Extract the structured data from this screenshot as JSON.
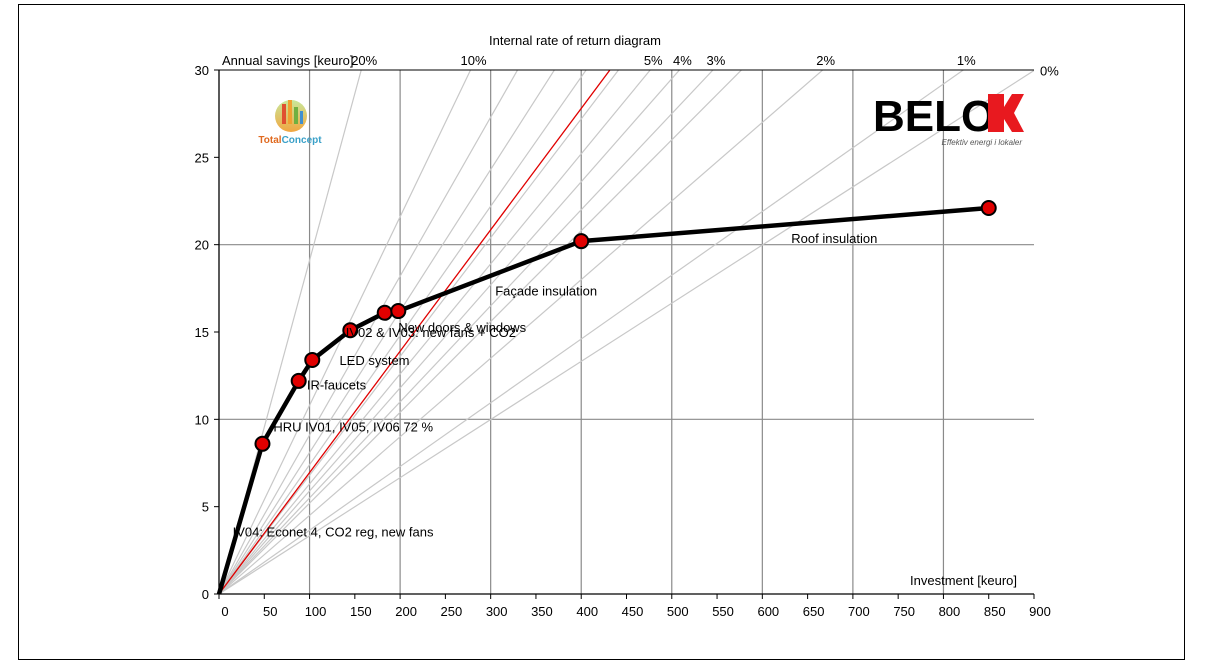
{
  "chart_data": {
    "type": "line",
    "title": "Internal rate of return diagram",
    "xlabel": "Investment [keuro]",
    "ylabel": "Annual savings [keuro]",
    "xlim": [
      0,
      900
    ],
    "ylim": [
      0,
      30
    ],
    "x_ticks": [
      "0",
      "50",
      "100",
      "150",
      "200",
      "250",
      "300",
      "350",
      "400",
      "450",
      "500",
      "550",
      "600",
      "650",
      "700",
      "750",
      "800",
      "850",
      "900"
    ],
    "y_ticks": [
      "0",
      "5",
      "10",
      "15",
      "20",
      "25",
      "30"
    ],
    "grid": true,
    "series": [
      {
        "x": [
          0,
          48,
          88,
          103,
          145,
          183,
          198,
          400,
          850
        ],
        "y": [
          0,
          8.6,
          12.2,
          13.4,
          15.1,
          16.1,
          16.2,
          20.2,
          22.1
        ],
        "color": "#000000",
        "marker_color": "#e00000"
      }
    ],
    "point_labels": [
      {
        "text": "IV04: Econet 4, CO2 reg, new fans",
        "x": 15,
        "y": 3.3
      },
      {
        "text": "HRU IV01, IV05, IV06 72 %",
        "x": 60,
        "y": 9.3
      },
      {
        "text": "IR-faucets",
        "x": 97,
        "y": 11.7
      },
      {
        "text": "LED system",
        "x": 133,
        "y": 13.1
      },
      {
        "text": "IV02 & IV03: new fans + CO2",
        "x": 140,
        "y": 14.7
      },
      {
        "text": "New doors & windows",
        "x": 198,
        "y": 15.0
      },
      {
        "text": "Façade insulation",
        "x": 305,
        "y": 17.1
      },
      {
        "text": "Roof insulation",
        "x": 632,
        "y": 20.1
      }
    ],
    "irr_lines": [
      {
        "label": "20%",
        "slope": 0.191
      },
      {
        "label": "10%",
        "slope": 0.108
      },
      {
        "label": "",
        "slope": 0.091
      },
      {
        "label": "",
        "slope": 0.081
      },
      {
        "label": "",
        "slope": 0.074
      },
      {
        "label": "",
        "slope": 0.068
      },
      {
        "label": "5%",
        "slope": 0.063
      },
      {
        "label": "4%",
        "slope": 0.059
      },
      {
        "label": "3%",
        "slope": 0.055
      },
      {
        "label": "",
        "slope": 0.052
      },
      {
        "label": "2%",
        "slope": 0.045
      },
      {
        "label": "1%",
        "slope": 0.0365
      },
      {
        "label": "0%",
        "slope": 0.0333
      }
    ],
    "payback_line": {
      "color": "#e00000",
      "slope": 0.0695
    },
    "logos": {
      "left": "TotalConcept",
      "right": "BELOK",
      "right_tagline": "Effektiv energi i lokaler"
    }
  }
}
